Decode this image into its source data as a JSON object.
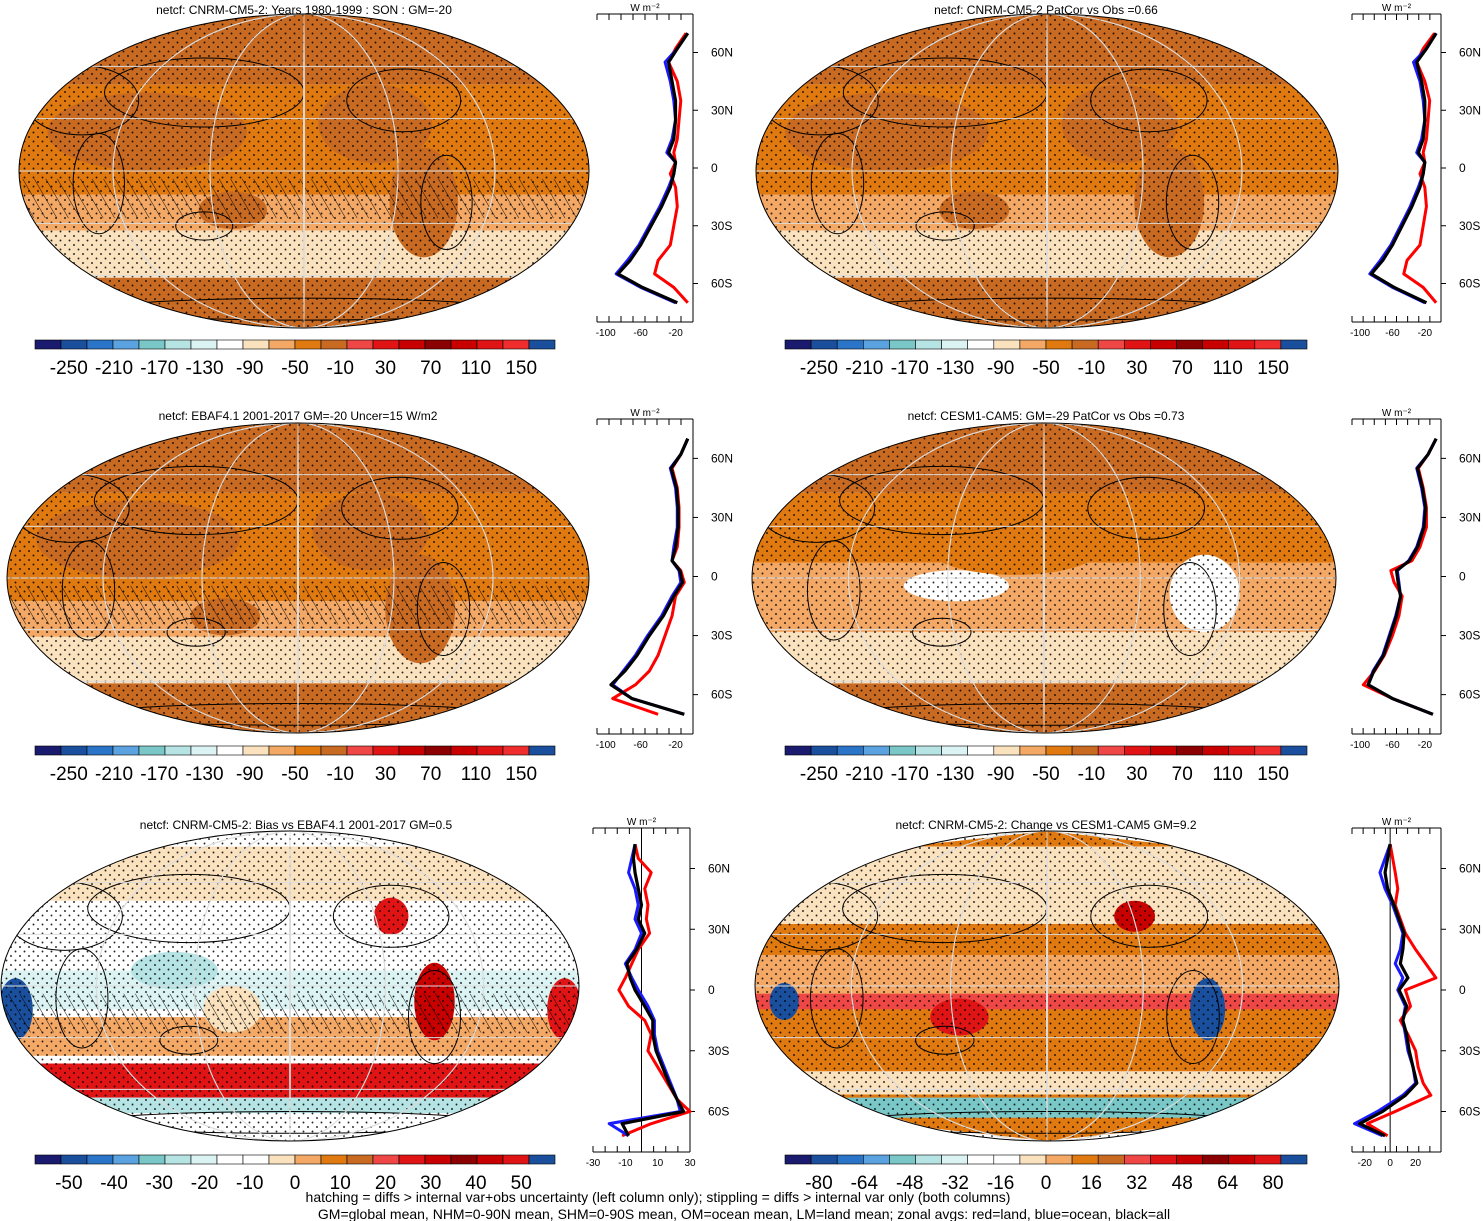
{
  "colors": {
    "main": "#e07a10",
    "dark": "#c86a22",
    "light": "#f3a865",
    "pale": "#fbe2bf",
    "zonal_land": "#ff0000",
    "zonal_ocean": "#1a1aff",
    "zonal_all": "#000000"
  },
  "colorbars": {
    "abs": {
      "colors": [
        "#1a1a6e",
        "#1a4f9e",
        "#2b75c8",
        "#5aa2e0",
        "#7ac7c7",
        "#b6e3e3",
        "#dcf3f3",
        "#ffffff",
        "#fbe2bf",
        "#f3a865",
        "#e07a10",
        "#c86a22",
        "#ef4646",
        "#e01414",
        "#c80000",
        "#8b0000",
        "#c80000",
        "#e01414",
        "#ef2d2d",
        "#1a4f9e"
      ],
      "labels": [
        "-250",
        "-210",
        "-170",
        "-130",
        "-90",
        "-50",
        "-10",
        "30",
        "70",
        "110",
        "150"
      ]
    },
    "bias": {
      "colors": [
        "#1a1a6e",
        "#1a4f9e",
        "#2b75c8",
        "#5aa2e0",
        "#7ac7c7",
        "#b6e3e3",
        "#dcf3f3",
        "#ffffff",
        "#ffffff",
        "#fbe2bf",
        "#f3a865",
        "#e07a10",
        "#c86a22",
        "#ef4646",
        "#e01414",
        "#c80000",
        "#8b0000",
        "#c80000",
        "#e01414",
        "#1a4f9e"
      ],
      "labels": [
        "-50",
        "-40",
        "-30",
        "-20",
        "-10",
        "0",
        "10",
        "20",
        "30",
        "40",
        "50"
      ]
    },
    "change": {
      "colors": [
        "#1a1a6e",
        "#1a4f9e",
        "#2b75c8",
        "#5aa2e0",
        "#7ac7c7",
        "#b6e3e3",
        "#dcf3f3",
        "#ffffff",
        "#ffffff",
        "#fbe2bf",
        "#f3a865",
        "#e07a10",
        "#c86a22",
        "#ef4646",
        "#e01414",
        "#c80000",
        "#8b0000",
        "#c80000",
        "#e01414",
        "#1a4f9e"
      ],
      "labels": [
        "-80",
        "-64",
        "-48",
        "-32",
        "-16",
        "0",
        "16",
        "32",
        "48",
        "64",
        "80"
      ]
    }
  },
  "units": "W m⁻²",
  "lat_labels": [
    "60N",
    "30N",
    "0",
    "30S",
    "60S"
  ],
  "lat_values": [
    60,
    30,
    0,
    -30,
    -60
  ],
  "panels": [
    {
      "title": "netcf: CNRM-CM5-2: Years 1980-1999 : SON : GM=-20",
      "colorbar": "abs",
      "variant": "abs",
      "zonal": {
        "xlim": [
          -110,
          0
        ],
        "xticks": [
          -100,
          -60,
          -20
        ],
        "zero_line": false,
        "lats": [
          70,
          62,
          55,
          45,
          35,
          25,
          15,
          8,
          3,
          -3,
          -10,
          -20,
          -30,
          -40,
          -48,
          -55,
          -62,
          -70
        ],
        "land": [
          -8,
          -20,
          -28,
          -18,
          -14,
          -16,
          -18,
          -22,
          -20,
          -26,
          -20,
          -18,
          -22,
          -26,
          -40,
          -44,
          -22,
          -6
        ],
        "ocean": [
          -6,
          -18,
          -32,
          -26,
          -22,
          -20,
          -24,
          -30,
          -20,
          -22,
          -28,
          -38,
          -50,
          -62,
          -75,
          -88,
          -60,
          -20
        ],
        "all": [
          -6,
          -18,
          -28,
          -24,
          -20,
          -20,
          -22,
          -28,
          -20,
          -22,
          -26,
          -36,
          -48,
          -60,
          -72,
          -86,
          -58,
          -18
        ]
      }
    },
    {
      "title": "netcf: CNRM-CM5-2 PatCor vs Obs =0.66",
      "colorbar": "abs",
      "variant": "abs",
      "zonal": {
        "xlim": [
          -110,
          0
        ],
        "xticks": [
          -100,
          -60,
          -20
        ],
        "zero_line": false,
        "lats": [
          70,
          62,
          55,
          45,
          35,
          25,
          15,
          8,
          3,
          -3,
          -10,
          -20,
          -30,
          -40,
          -48,
          -55,
          -62,
          -70
        ],
        "land": [
          -8,
          -22,
          -30,
          -20,
          -14,
          -16,
          -18,
          -22,
          -20,
          -26,
          -20,
          -18,
          -22,
          -26,
          -42,
          -46,
          -22,
          -6
        ],
        "ocean": [
          -6,
          -18,
          -34,
          -26,
          -22,
          -20,
          -24,
          -30,
          -20,
          -22,
          -28,
          -38,
          -50,
          -62,
          -75,
          -88,
          -60,
          -20
        ],
        "all": [
          -6,
          -18,
          -30,
          -24,
          -20,
          -20,
          -22,
          -28,
          -20,
          -22,
          -26,
          -36,
          -48,
          -60,
          -72,
          -86,
          -58,
          -18
        ]
      }
    },
    {
      "title": "netcf: EBAF4.1 2001-2017 GM=-20 Uncer=15 W/m2",
      "colorbar": "abs",
      "variant": "abs",
      "zonal": {
        "xlim": [
          -110,
          0
        ],
        "xticks": [
          -100,
          -60,
          -20
        ],
        "zero_line": false,
        "lats": [
          70,
          62,
          55,
          45,
          35,
          25,
          15,
          8,
          3,
          -3,
          -10,
          -20,
          -30,
          -40,
          -48,
          -55,
          -62,
          -70
        ],
        "land": [
          -6,
          -14,
          -24,
          -18,
          -16,
          -16,
          -18,
          -24,
          -14,
          -10,
          -20,
          -24,
          -32,
          -40,
          -50,
          -66,
          -92,
          -40
        ],
        "ocean": [
          -6,
          -14,
          -26,
          -20,
          -18,
          -18,
          -22,
          -24,
          -16,
          -14,
          -24,
          -36,
          -52,
          -66,
          -80,
          -92,
          -70,
          -10
        ],
        "all": [
          -6,
          -14,
          -25,
          -19,
          -17,
          -17,
          -20,
          -24,
          -15,
          -12,
          -22,
          -34,
          -50,
          -64,
          -78,
          -94,
          -70,
          -10
        ]
      }
    },
    {
      "title": "netcf: CESM1-CAM5: GM=-29 PatCor vs Obs =0.73",
      "colorbar": "abs",
      "variant": "abs2",
      "zonal": {
        "xlim": [
          -110,
          0
        ],
        "xticks": [
          -100,
          -60,
          -20
        ],
        "zero_line": false,
        "lats": [
          70,
          62,
          55,
          45,
          35,
          25,
          15,
          8,
          3,
          -3,
          -10,
          -20,
          -30,
          -40,
          -48,
          -55,
          -62,
          -70
        ],
        "land": [
          -6,
          -16,
          -28,
          -22,
          -18,
          -18,
          -26,
          -36,
          -62,
          -58,
          -48,
          -52,
          -60,
          -70,
          -82,
          -96,
          -60,
          -10
        ],
        "ocean": [
          -6,
          -16,
          -30,
          -24,
          -20,
          -22,
          -30,
          -40,
          -54,
          -52,
          -50,
          -56,
          -64,
          -72,
          -84,
          -90,
          -60,
          -10
        ],
        "all": [
          -6,
          -16,
          -29,
          -23,
          -19,
          -21,
          -29,
          -39,
          -55,
          -53,
          -50,
          -55,
          -63,
          -71,
          -83,
          -90,
          -60,
          -10
        ]
      }
    },
    {
      "title": "netcf: CNRM-CM5-2: Bias vs EBAF4.1 2001-2017  GM=0.5",
      "colorbar": "bias",
      "variant": "bias",
      "zonal": {
        "xlim": [
          -30,
          30
        ],
        "xticks": [
          -30,
          -10,
          10,
          30
        ],
        "zero_line": true,
        "lats": [
          72,
          65,
          58,
          50,
          42,
          35,
          28,
          20,
          13,
          6,
          0,
          -8,
          -15,
          -22,
          -30,
          -38,
          -46,
          -54,
          -60,
          -66,
          -72
        ],
        "land": [
          -4,
          -2,
          6,
          2,
          4,
          3,
          5,
          -2,
          -6,
          -10,
          -14,
          -8,
          2,
          6,
          4,
          10,
          16,
          22,
          30,
          6,
          -12
        ],
        "ocean": [
          -4,
          -6,
          -8,
          -4,
          -2,
          -4,
          0,
          -4,
          -10,
          -6,
          -2,
          4,
          8,
          8,
          10,
          14,
          18,
          22,
          24,
          -20,
          -8
        ],
        "all": [
          -4,
          -5,
          -4,
          -2,
          0,
          -2,
          2,
          -3,
          -9,
          -7,
          -4,
          2,
          7,
          7,
          9,
          13,
          17,
          22,
          26,
          -12,
          -8
        ]
      }
    },
    {
      "title": "netcf: CNRM-CM5-2: Change vs CESM1-CAM5 GM=9.2",
      "colorbar": "change",
      "variant": "change",
      "zonal": {
        "xlim": [
          -30,
          40
        ],
        "xticks": [
          -20,
          0,
          20
        ],
        "zero_line": true,
        "lats": [
          72,
          65,
          58,
          50,
          42,
          35,
          28,
          20,
          13,
          6,
          0,
          -8,
          -15,
          -22,
          -30,
          -38,
          -46,
          -52,
          -60,
          -66,
          -72
        ],
        "land": [
          0,
          2,
          4,
          6,
          4,
          8,
          12,
          20,
          28,
          36,
          12,
          16,
          8,
          14,
          20,
          22,
          26,
          32,
          4,
          -18,
          -2
        ],
        "ocean": [
          0,
          -4,
          -8,
          -4,
          2,
          6,
          10,
          8,
          4,
          10,
          6,
          12,
          10,
          12,
          14,
          18,
          20,
          10,
          -10,
          -28,
          -6
        ],
        "all": [
          0,
          -2,
          -4,
          -2,
          3,
          7,
          11,
          10,
          8,
          14,
          7,
          13,
          10,
          13,
          15,
          18,
          21,
          12,
          -6,
          -24,
          -4
        ]
      }
    }
  ],
  "footer": {
    "line1": "hatching = diffs > internal var+obs uncertainty (left column only); stippling = diffs > internal var only (both columns)",
    "line2": "GM=global mean, NHM=0-90N mean, SHM=0-90S mean, OM=ocean mean, LM=land mean; zonal avgs: red=land, blue=ocean, black=all"
  }
}
